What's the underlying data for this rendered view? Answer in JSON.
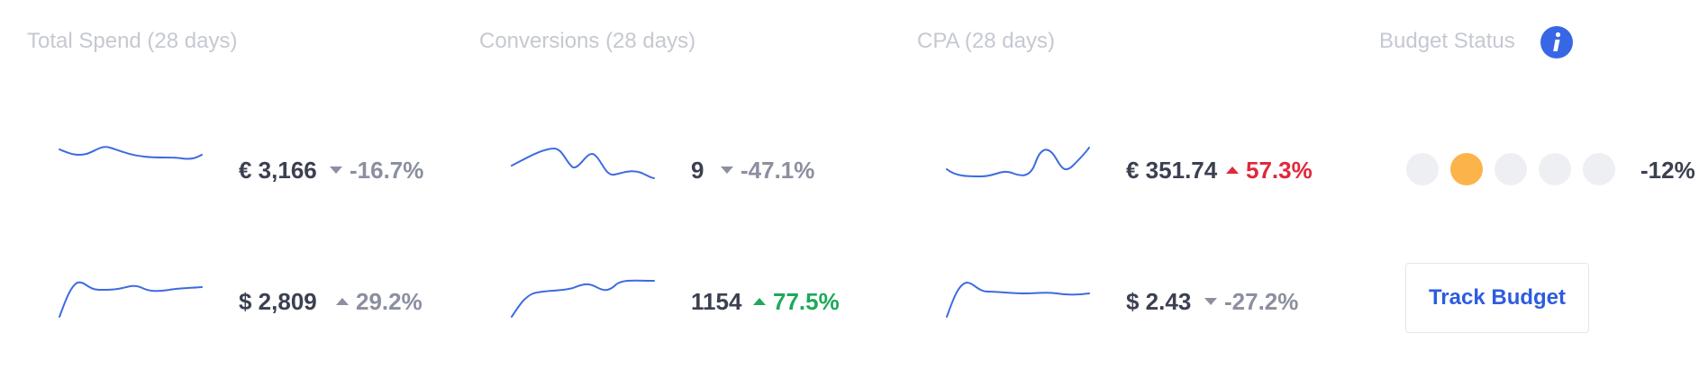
{
  "columns": [
    {
      "title": "Total Spend (28 days)"
    },
    {
      "title": "Conversions (28 days)"
    },
    {
      "title": "CPA (28 days)"
    },
    {
      "title": "Budget Status"
    }
  ],
  "metrics": {
    "spend_eur": {
      "value": "€ 3,166",
      "delta": "-16.7%",
      "direction": "down",
      "tone": "neutral"
    },
    "spend_usd": {
      "value": "$ 2,809",
      "delta": "29.2%",
      "direction": "up",
      "tone": "neutral"
    },
    "conv_1": {
      "value": "9",
      "delta": "-47.1%",
      "direction": "down",
      "tone": "neutral"
    },
    "conv_2": {
      "value": "1154",
      "delta": "77.5%",
      "direction": "up",
      "tone": "good"
    },
    "cpa_eur": {
      "value": "€ 351.74",
      "delta": "57.3%",
      "direction": "up",
      "tone": "bad"
    },
    "cpa_usd": {
      "value": "$ 2.43",
      "delta": "-27.2%",
      "direction": "down",
      "tone": "neutral"
    }
  },
  "budget": {
    "level_of_5": 2,
    "percent": "-12%",
    "button_label": "Track Budget"
  },
  "icons": {
    "info": "info-icon",
    "trend_down": "caret-down-icon",
    "trend_up": "caret-up-icon"
  },
  "colors": {
    "accent": "#3867e6",
    "sparkline": "#3d6be0",
    "negative": "#e0283b",
    "positive": "#1fa85a",
    "neutral": "#8b8f9f",
    "budget_active": "#fcb34a",
    "budget_inactive": "#eeeff3"
  }
}
